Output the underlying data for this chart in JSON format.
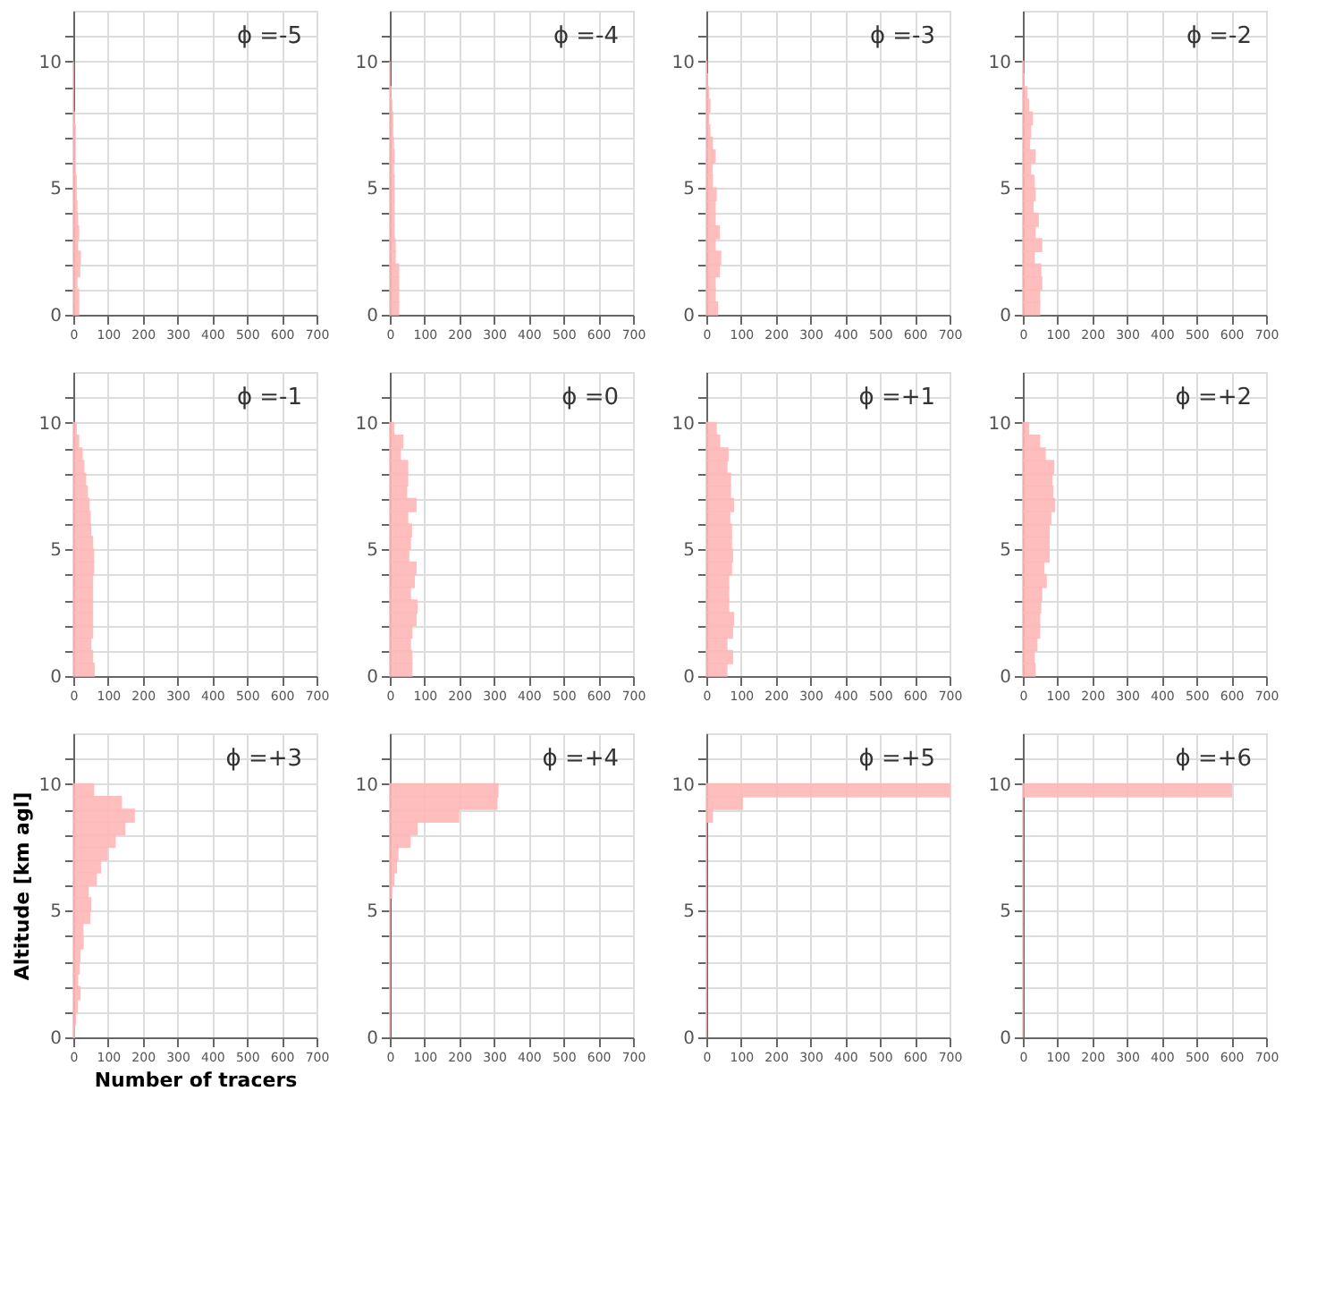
{
  "chart_data": [
    {
      "type": "histogram",
      "orientation": "horizontal",
      "title": "ϕ =-5",
      "color": "#ffb8b8",
      "bins": [
        0,
        0.5,
        1,
        1.5,
        2,
        2.5,
        3,
        3.5,
        4,
        4.5,
        5,
        5.5,
        6,
        6.5,
        7,
        7.5,
        8,
        8.5,
        9,
        9.5,
        10
      ],
      "values": [
        15,
        15,
        10,
        18,
        20,
        12,
        15,
        12,
        10,
        8,
        8,
        5,
        5,
        5,
        5,
        3,
        0,
        0,
        0,
        0
      ],
      "xlim": [
        0,
        700
      ],
      "xticks": [
        0,
        100,
        200,
        300,
        400,
        500,
        600,
        700
      ],
      "ylim": [
        0,
        12
      ],
      "yticks": [
        0,
        {
          "value": 1,
          "label": null
        },
        {
          "value": 2,
          "label": null
        },
        {
          "value": 3,
          "label": null
        },
        {
          "value": 4,
          "label": null
        },
        5,
        {
          "value": 6,
          "label": null
        },
        {
          "value": 7,
          "label": null
        },
        {
          "value": 8,
          "label": null
        },
        {
          "value": 9,
          "label": null
        },
        10,
        {
          "value": 11,
          "label": null
        }
      ],
      "grid": true
    },
    {
      "type": "histogram",
      "orientation": "horizontal",
      "title": "ϕ =-4",
      "color": "#ffb8b8",
      "bins": [
        0,
        0.5,
        1,
        1.5,
        2,
        2.5,
        3,
        3.5,
        4,
        4.5,
        5,
        5.5,
        6,
        6.5,
        7,
        7.5,
        8,
        8.5,
        9,
        9.5,
        10
      ],
      "values": [
        25,
        25,
        25,
        25,
        15,
        15,
        12,
        12,
        12,
        12,
        12,
        10,
        12,
        10,
        8,
        8,
        5,
        3,
        0,
        0
      ],
      "xlim": [
        0,
        700
      ],
      "xticks": [
        0,
        100,
        200,
        300,
        400,
        500,
        600,
        700
      ],
      "ylim": [
        0,
        12
      ],
      "yticks": [
        0,
        {
          "value": 1,
          "label": null
        },
        {
          "value": 2,
          "label": null
        },
        {
          "value": 3,
          "label": null
        },
        {
          "value": 4,
          "label": null
        },
        5,
        {
          "value": 6,
          "label": null
        },
        {
          "value": 7,
          "label": null
        },
        {
          "value": 8,
          "label": null
        },
        {
          "value": 9,
          "label": null
        },
        10,
        {
          "value": 11,
          "label": null
        }
      ],
      "grid": true
    },
    {
      "type": "histogram",
      "orientation": "horizontal",
      "title": "ϕ =-3",
      "color": "#ffb8b8",
      "bins": [
        0,
        0.5,
        1,
        1.5,
        2,
        2.5,
        3,
        3.5,
        4,
        4.5,
        5,
        5.5,
        6,
        6.5,
        7,
        7.5,
        8,
        8.5,
        9,
        9.5,
        10
      ],
      "values": [
        32,
        25,
        25,
        37,
        41,
        25,
        37,
        25,
        25,
        28,
        17,
        16,
        25,
        17,
        10,
        6,
        10,
        6,
        3,
        1
      ],
      "xlim": [
        0,
        700
      ],
      "xticks": [
        0,
        100,
        200,
        300,
        400,
        500,
        600,
        700
      ],
      "ylim": [
        0,
        12
      ],
      "yticks": [
        0,
        {
          "value": 1,
          "label": null
        },
        {
          "value": 2,
          "label": null
        },
        {
          "value": 3,
          "label": null
        },
        {
          "value": 4,
          "label": null
        },
        5,
        {
          "value": 6,
          "label": null
        },
        {
          "value": 7,
          "label": null
        },
        {
          "value": 8,
          "label": null
        },
        {
          "value": 9,
          "label": null
        },
        10,
        {
          "value": 11,
          "label": null
        }
      ],
      "grid": true
    },
    {
      "type": "histogram",
      "orientation": "horizontal",
      "title": "ϕ =-2",
      "color": "#ffb8b8",
      "bins": [
        0,
        0.5,
        1,
        1.5,
        2,
        2.5,
        3,
        3.5,
        4,
        4.5,
        5,
        5.5,
        6,
        6.5,
        7,
        7.5,
        8,
        8.5,
        9,
        9.5,
        10
      ],
      "values": [
        48,
        48,
        54,
        51,
        32,
        54,
        35,
        44,
        29,
        35,
        32,
        22,
        35,
        19,
        22,
        27,
        16,
        11,
        3,
        2
      ],
      "xlim": [
        0,
        700
      ],
      "xticks": [
        0,
        100,
        200,
        300,
        400,
        500,
        600,
        700
      ],
      "ylim": [
        0,
        12
      ],
      "yticks": [
        0,
        {
          "value": 1,
          "label": null
        },
        {
          "value": 2,
          "label": null
        },
        {
          "value": 3,
          "label": null
        },
        {
          "value": 4,
          "label": null
        },
        5,
        {
          "value": 6,
          "label": null
        },
        {
          "value": 7,
          "label": null
        },
        {
          "value": 8,
          "label": null
        },
        {
          "value": 9,
          "label": null
        },
        10,
        {
          "value": 11,
          "label": null
        }
      ],
      "grid": true
    },
    {
      "type": "histogram",
      "orientation": "horizontal",
      "title": "ϕ =-1",
      "color": "#ffb8b8",
      "bins": [
        0,
        0.5,
        1,
        1.5,
        2,
        2.5,
        3,
        3.5,
        4,
        4.5,
        5,
        5.5,
        6,
        6.5,
        7,
        7.5,
        8,
        8.5,
        9,
        9.5,
        10
      ],
      "values": [
        60,
        55,
        50,
        55,
        55,
        55,
        55,
        55,
        58,
        58,
        55,
        50,
        48,
        45,
        40,
        35,
        30,
        25,
        15,
        8
      ],
      "xlim": [
        0,
        700
      ],
      "xticks": [
        0,
        100,
        200,
        300,
        400,
        500,
        600,
        700
      ],
      "ylim": [
        0,
        12
      ],
      "yticks": [
        0,
        {
          "value": 1,
          "label": null
        },
        {
          "value": 2,
          "label": null
        },
        {
          "value": 3,
          "label": null
        },
        {
          "value": 4,
          "label": null
        },
        5,
        {
          "value": 6,
          "label": null
        },
        {
          "value": 7,
          "label": null
        },
        {
          "value": 8,
          "label": null
        },
        {
          "value": 9,
          "label": null
        },
        10,
        {
          "value": 11,
          "label": null
        }
      ],
      "grid": true
    },
    {
      "type": "histogram",
      "orientation": "horizontal",
      "title": "ϕ =0",
      "color": "#ffb8b8",
      "bins": [
        0,
        0.5,
        1,
        1.5,
        2,
        2.5,
        3,
        3.5,
        4,
        4.5,
        5,
        5.5,
        6,
        6.5,
        7,
        7.5,
        8,
        8.5,
        9,
        9.5,
        10
      ],
      "values": [
        63,
        63,
        59,
        63,
        75,
        78,
        59,
        70,
        75,
        54,
        59,
        62,
        51,
        75,
        48,
        51,
        51,
        30,
        37,
        11
      ],
      "xlim": [
        0,
        700
      ],
      "xticks": [
        0,
        100,
        200,
        300,
        400,
        500,
        600,
        700
      ],
      "ylim": [
        0,
        12
      ],
      "yticks": [
        0,
        {
          "value": 1,
          "label": null
        },
        {
          "value": 2,
          "label": null
        },
        {
          "value": 3,
          "label": null
        },
        {
          "value": 4,
          "label": null
        },
        5,
        {
          "value": 6,
          "label": null
        },
        {
          "value": 7,
          "label": null
        },
        {
          "value": 8,
          "label": null
        },
        {
          "value": 9,
          "label": null
        },
        10,
        {
          "value": 11,
          "label": null
        }
      ],
      "grid": true
    },
    {
      "type": "histogram",
      "orientation": "horizontal",
      "title": "ϕ =+1",
      "color": "#ffb8b8",
      "bins": [
        0,
        0.5,
        1,
        1.5,
        2,
        2.5,
        3,
        3.5,
        4,
        4.5,
        5,
        5.5,
        6,
        6.5,
        7,
        7.5,
        8,
        8.5,
        9,
        9.5,
        10
      ],
      "values": [
        59,
        75,
        59,
        75,
        78,
        64,
        64,
        64,
        72,
        75,
        72,
        72,
        67,
        78,
        69,
        69,
        59,
        62,
        38,
        28
      ],
      "xlim": [
        0,
        700
      ],
      "xticks": [
        0,
        100,
        200,
        300,
        400,
        500,
        600,
        700
      ],
      "ylim": [
        0,
        12
      ],
      "yticks": [
        0,
        {
          "value": 1,
          "label": null
        },
        {
          "value": 2,
          "label": null
        },
        {
          "value": 3,
          "label": null
        },
        {
          "value": 4,
          "label": null
        },
        5,
        {
          "value": 6,
          "label": null
        },
        {
          "value": 7,
          "label": null
        },
        {
          "value": 8,
          "label": null
        },
        {
          "value": 9,
          "label": null
        },
        10,
        {
          "value": 11,
          "label": null
        }
      ],
      "grid": true
    },
    {
      "type": "histogram",
      "orientation": "horizontal",
      "title": "ϕ =+2",
      "color": "#ffb8b8",
      "bins": [
        0,
        0.5,
        1,
        1.5,
        2,
        2.5,
        3,
        3.5,
        4,
        4.5,
        5,
        5.5,
        6,
        6.5,
        7,
        7.5,
        8,
        8.5,
        9,
        9.5,
        10
      ],
      "values": [
        35,
        32,
        40,
        48,
        48,
        51,
        54,
        67,
        60,
        75,
        75,
        75,
        80,
        91,
        86,
        83,
        88,
        64,
        48,
        16
      ],
      "xlim": [
        0,
        700
      ],
      "xticks": [
        0,
        100,
        200,
        300,
        400,
        500,
        600,
        700
      ],
      "ylim": [
        0,
        12
      ],
      "yticks": [
        0,
        {
          "value": 1,
          "label": null
        },
        {
          "value": 2,
          "label": null
        },
        {
          "value": 3,
          "label": null
        },
        {
          "value": 4,
          "label": null
        },
        5,
        {
          "value": 6,
          "label": null
        },
        {
          "value": 7,
          "label": null
        },
        {
          "value": 8,
          "label": null
        },
        {
          "value": 9,
          "label": null
        },
        10,
        {
          "value": 11,
          "label": null
        }
      ],
      "grid": true
    },
    {
      "type": "histogram",
      "orientation": "horizontal",
      "title": "ϕ =+3",
      "xlabel": "Number of tracers",
      "ylabel": "Altitude [km agl]",
      "color": "#ffb8b8",
      "bins": [
        0,
        0.5,
        1,
        1.5,
        2,
        2.5,
        3,
        3.5,
        4,
        4.5,
        5,
        5.5,
        6,
        6.5,
        7,
        7.5,
        8,
        8.5,
        9,
        9.5,
        10
      ],
      "values": [
        3,
        6,
        11,
        19,
        12,
        16,
        19,
        28,
        27,
        47,
        50,
        42,
        66,
        78,
        97,
        120,
        148,
        175,
        138,
        58
      ],
      "xlim": [
        0,
        700
      ],
      "xticks": [
        0,
        100,
        200,
        300,
        400,
        500,
        600,
        700
      ],
      "ylim": [
        0,
        12
      ],
      "yticks": [
        0,
        {
          "value": 1,
          "label": null
        },
        {
          "value": 2,
          "label": null
        },
        {
          "value": 3,
          "label": null
        },
        {
          "value": 4,
          "label": null
        },
        5,
        {
          "value": 6,
          "label": null
        },
        {
          "value": 7,
          "label": null
        },
        {
          "value": 8,
          "label": null
        },
        {
          "value": 9,
          "label": null
        },
        10,
        {
          "value": 11,
          "label": null
        }
      ],
      "grid": true
    },
    {
      "type": "histogram",
      "orientation": "horizontal",
      "title": "ϕ =+4",
      "color": "#ffb8b8",
      "bins": [
        0,
        0.5,
        1,
        1.5,
        2,
        2.5,
        3,
        3.5,
        4,
        4.5,
        5,
        5.5,
        6,
        6.5,
        7,
        7.5,
        8,
        8.5,
        9,
        9.5,
        10
      ],
      "values": [
        0,
        0,
        0,
        0,
        0,
        0,
        0,
        0,
        0,
        0,
        0,
        5,
        11,
        19,
        23,
        58,
        78,
        198,
        308,
        311
      ],
      "xlim": [
        0,
        700
      ],
      "xticks": [
        0,
        100,
        200,
        300,
        400,
        500,
        600,
        700
      ],
      "ylim": [
        0,
        12
      ],
      "yticks": [
        0,
        {
          "value": 1,
          "label": null
        },
        {
          "value": 2,
          "label": null
        },
        {
          "value": 3,
          "label": null
        },
        {
          "value": 4,
          "label": null
        },
        5,
        {
          "value": 6,
          "label": null
        },
        {
          "value": 7,
          "label": null
        },
        {
          "value": 8,
          "label": null
        },
        {
          "value": 9,
          "label": null
        },
        10,
        {
          "value": 11,
          "label": null
        }
      ],
      "grid": true
    },
    {
      "type": "histogram",
      "orientation": "horizontal",
      "title": "ϕ =+5",
      "color": "#ffb8b8",
      "bins": [
        0,
        0.5,
        1,
        1.5,
        2,
        2.5,
        3,
        3.5,
        4,
        4.5,
        5,
        5.5,
        6,
        6.5,
        7,
        7.5,
        8,
        8.5,
        9,
        9.5,
        10
      ],
      "values": [
        0,
        0,
        0,
        0,
        0,
        0,
        0,
        0,
        0,
        0,
        0,
        0,
        0,
        0,
        0,
        0,
        0,
        17,
        103,
        700
      ],
      "xlim": [
        0,
        700
      ],
      "xticks": [
        0,
        100,
        200,
        300,
        400,
        500,
        600,
        700
      ],
      "ylim": [
        0,
        12
      ],
      "yticks": [
        0,
        {
          "value": 1,
          "label": null
        },
        {
          "value": 2,
          "label": null
        },
        {
          "value": 3,
          "label": null
        },
        {
          "value": 4,
          "label": null
        },
        5,
        {
          "value": 6,
          "label": null
        },
        {
          "value": 7,
          "label": null
        },
        {
          "value": 8,
          "label": null
        },
        {
          "value": 9,
          "label": null
        },
        10,
        {
          "value": 11,
          "label": null
        }
      ],
      "grid": true
    },
    {
      "type": "histogram",
      "orientation": "horizontal",
      "title": "ϕ =+6",
      "color": "#ffb8b8",
      "bins": [
        0,
        0.5,
        1,
        1.5,
        2,
        2.5,
        3,
        3.5,
        4,
        4.5,
        5,
        5.5,
        6,
        6.5,
        7,
        7.5,
        8,
        8.5,
        9,
        9.5,
        10
      ],
      "values": [
        0,
        0,
        0,
        0,
        0,
        0,
        0,
        0,
        0,
        0,
        0,
        0,
        0,
        0,
        0,
        0,
        0,
        0,
        0,
        600
      ],
      "xlim": [
        0,
        700
      ],
      "xticks": [
        0,
        100,
        200,
        300,
        400,
        500,
        600,
        700
      ],
      "ylim": [
        0,
        12
      ],
      "yticks": [
        0,
        {
          "value": 1,
          "label": null
        },
        {
          "value": 2,
          "label": null
        },
        {
          "value": 3,
          "label": null
        },
        {
          "value": 4,
          "label": null
        },
        5,
        {
          "value": 6,
          "label": null
        },
        {
          "value": 7,
          "label": null
        },
        {
          "value": 8,
          "label": null
        },
        {
          "value": 9,
          "label": null
        },
        10,
        {
          "value": 11,
          "label": null
        }
      ],
      "grid": true
    }
  ]
}
